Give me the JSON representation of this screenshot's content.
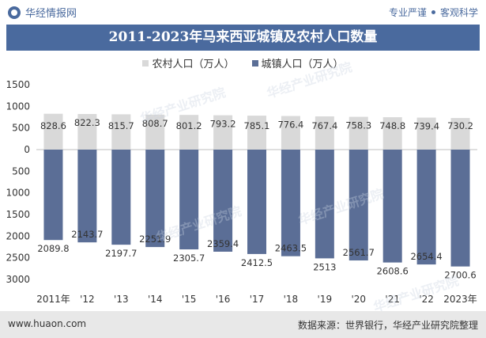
{
  "header": {
    "brand": "华经情报网",
    "tagline_left": "专业严谨",
    "tagline_right": "客观科学"
  },
  "colors": {
    "brand": "#4a6a9e",
    "rural": "#d9d9d9",
    "urban": "#5b6e96",
    "footer_bg": "#e8e8e8"
  },
  "icons": {
    "logo": "brand-logo-icon"
  },
  "watermark": "华经产业研究院",
  "footer": {
    "website": "www.huaon.com",
    "source": "数据来源：世界银行，华经产业研究院整理"
  },
  "chart_data": {
    "type": "bar",
    "title": "2011-2023年马来西亚城镇及农村人口数量",
    "categories": [
      "2011年",
      "'12",
      "'13",
      "'14",
      "'15",
      "'16",
      "'17",
      "'18",
      "'19",
      "'20",
      "'21",
      "'22",
      "2023年"
    ],
    "series": [
      {
        "name": "农村人口（万人）",
        "color": "#d9d9d9",
        "direction": "up",
        "values": [
          828.6,
          822.3,
          815.7,
          808.7,
          801.2,
          793.2,
          785.1,
          776.4,
          767.4,
          758.3,
          748.8,
          739.4,
          730.2
        ],
        "labels": [
          "828.6",
          "822.3",
          "815.7",
          "808.7",
          "801.2",
          "793.2",
          "785.1",
          "776.4",
          "767.4",
          "758.3",
          "748.8",
          "739.4",
          "730.2"
        ]
      },
      {
        "name": "城镇人口（万人）",
        "color": "#5b6e96",
        "direction": "down",
        "values": [
          2089.8,
          2143.7,
          2197.7,
          2251.9,
          2305.7,
          2359.4,
          2412.5,
          2463.5,
          2513,
          2561.7,
          2608.6,
          2654.4,
          2700.6
        ],
        "labels": [
          "2089.8",
          "2143.7",
          "2197.7",
          "2251.9",
          "2305.7",
          "2359.4",
          "2412.5",
          "2463.5",
          "2513",
          "2561.7",
          "2608.6",
          "2654.4",
          "2700.6"
        ]
      }
    ],
    "yaxis": {
      "ylim": [
        -3000,
        1500
      ],
      "ticks": [
        1500,
        1000,
        500,
        0,
        -500,
        -1000,
        -1500,
        -2000,
        -2500,
        -3000
      ],
      "tick_labels": [
        "1500",
        "1000",
        "500",
        "0",
        "500",
        "1000",
        "1500",
        "2000",
        "2500",
        "3000"
      ]
    },
    "grid": false,
    "legend_position": "top-center"
  }
}
